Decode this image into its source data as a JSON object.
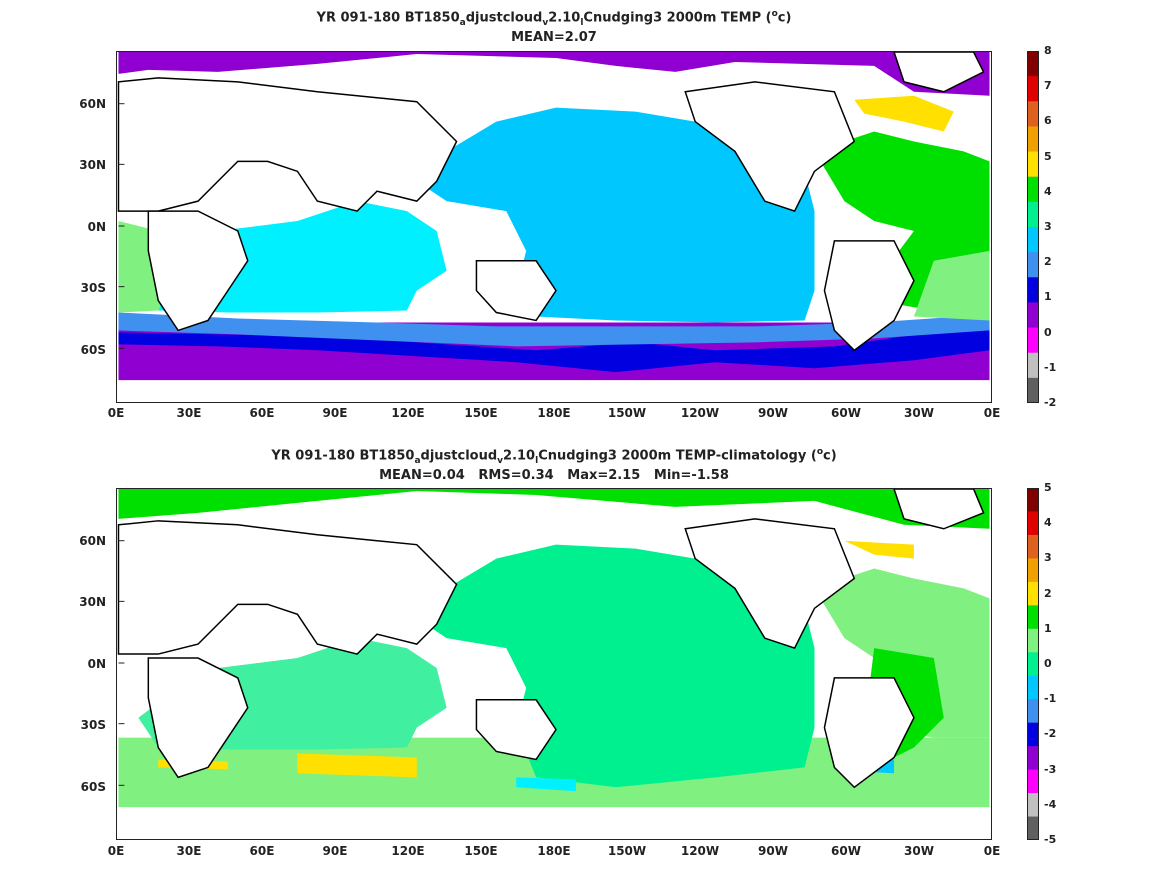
{
  "panels": [
    {
      "title_parts": {
        "pre": "YR 091-180 BT1850",
        "sub1": "a",
        "mid": "djustcloud",
        "sub2": "v",
        "mid2": "2.10",
        "sub3": "l",
        "post": "Cnudging3 2000m TEMP (",
        "sup": "o",
        "end": "c)"
      },
      "stats": "MEAN=2.07",
      "colorbar": [
        "8",
        "7",
        "6",
        "5",
        "4",
        "3",
        "2",
        "1",
        "0",
        "-1",
        "-2"
      ],
      "colorbar_colors": [
        "#800000",
        "#e00000",
        "#e06020",
        "#f0a000",
        "#ffe000",
        "#00e000",
        "#00f090",
        "#00c8ff",
        "#4090f0",
        "#0000e0",
        "#9000d0",
        "#ff00ff",
        "#c0c0c0",
        "#606060"
      ]
    },
    {
      "title_parts": {
        "pre": "YR 091-180 BT1850",
        "sub1": "a",
        "mid": "djustcloud",
        "sub2": "v",
        "mid2": "2.10",
        "sub3": "l",
        "post": "Cnudging3 2000m TEMP-climatology (",
        "sup": "o",
        "end": "c)"
      },
      "stats": "MEAN=0.04   RMS=0.34   Max=2.15   Min=-1.58",
      "colorbar": [
        "5",
        "4",
        "3",
        "2",
        "1",
        "0",
        "-1",
        "-2",
        "-3",
        "-4",
        "-5"
      ],
      "colorbar_colors": [
        "#800000",
        "#e00000",
        "#e06020",
        "#f0a000",
        "#ffe000",
        "#00e000",
        "#80f080",
        "#00f090",
        "#00c8ff",
        "#4090f0",
        "#0000e0",
        "#9000d0",
        "#ff00ff",
        "#c0c0c0",
        "#606060"
      ]
    }
  ],
  "lat_labels": [
    "60N",
    "30N",
    "0N",
    "30S",
    "60S"
  ],
  "lon_labels": [
    "0E",
    "30E",
    "60E",
    "90E",
    "120E",
    "150E",
    "180E",
    "150W",
    "120W",
    "90W",
    "60W",
    "30W",
    "0E"
  ]
}
